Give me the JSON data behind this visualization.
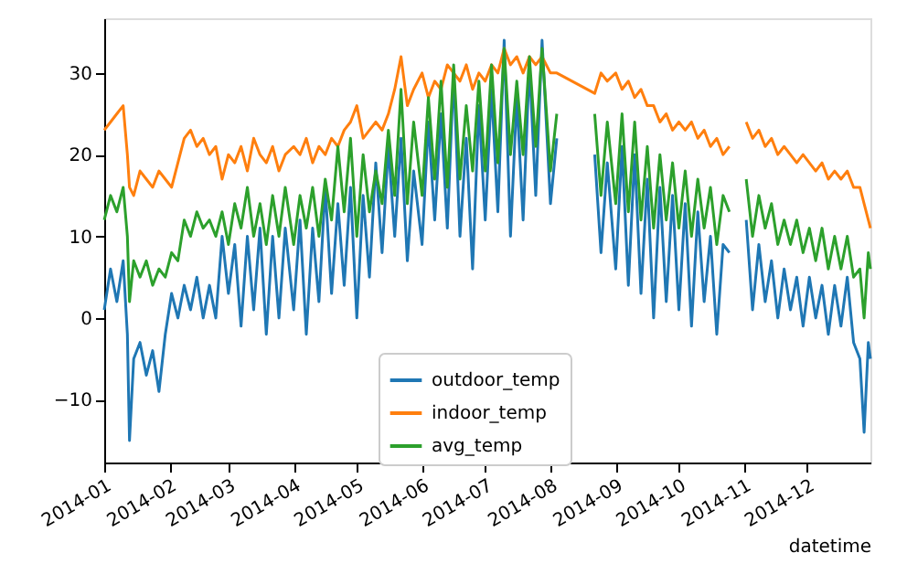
{
  "chart_data": {
    "type": "line",
    "xlabel": "datetime",
    "legend": "bottom",
    "grid": false,
    "xlim": [
      "2014-01-01",
      "2014-12-31"
    ],
    "xticks": [
      "2014-01",
      "2014-02",
      "2014-03",
      "2014-04",
      "2014-05",
      "2014-06",
      "2014-07",
      "2014-08",
      "2014-09",
      "2014-10",
      "2014-11",
      "2014-12"
    ],
    "ylim": [
      -17.7,
      36.7
    ],
    "yticks": [
      -10,
      0,
      10,
      20,
      30
    ],
    "x": [
      "2014-01-01",
      "2014-01-04",
      "2014-01-07",
      "2014-01-10",
      "2014-01-12",
      "2014-01-13",
      "2014-01-15",
      "2014-01-18",
      "2014-01-21",
      "2014-01-24",
      "2014-01-27",
      "2014-01-30",
      "2014-02-02",
      "2014-02-05",
      "2014-02-08",
      "2014-02-11",
      "2014-02-14",
      "2014-02-17",
      "2014-02-20",
      "2014-02-23",
      "2014-02-26",
      "2014-03-01",
      "2014-03-04",
      "2014-03-07",
      "2014-03-10",
      "2014-03-13",
      "2014-03-16",
      "2014-03-19",
      "2014-03-22",
      "2014-03-25",
      "2014-03-28",
      "2014-04-01",
      "2014-04-04",
      "2014-04-07",
      "2014-04-10",
      "2014-04-13",
      "2014-04-16",
      "2014-04-19",
      "2014-04-22",
      "2014-04-25",
      "2014-04-28",
      "2014-05-01",
      "2014-05-04",
      "2014-05-07",
      "2014-05-10",
      "2014-05-13",
      "2014-05-16",
      "2014-05-19",
      "2014-05-22",
      "2014-05-25",
      "2014-05-28",
      "2014-06-01",
      "2014-06-04",
      "2014-06-07",
      "2014-06-10",
      "2014-06-13",
      "2014-06-16",
      "2014-06-19",
      "2014-06-22",
      "2014-06-25",
      "2014-06-28",
      "2014-07-01",
      "2014-07-04",
      "2014-07-07",
      "2014-07-10",
      "2014-07-13",
      "2014-07-16",
      "2014-07-19",
      "2014-07-22",
      "2014-07-25",
      "2014-07-28",
      "2014-08-01",
      "2014-08-04",
      "2014-08-13",
      "2014-08-22",
      "2014-08-25",
      "2014-08-28",
      "2014-09-01",
      "2014-09-04",
      "2014-09-07",
      "2014-09-10",
      "2014-09-13",
      "2014-09-16",
      "2014-09-19",
      "2014-09-22",
      "2014-09-25",
      "2014-09-28",
      "2014-10-01",
      "2014-10-04",
      "2014-10-07",
      "2014-10-10",
      "2014-10-13",
      "2014-10-16",
      "2014-10-19",
      "2014-10-22",
      "2014-10-25",
      "2014-10-29",
      "2014-11-02",
      "2014-11-05",
      "2014-11-08",
      "2014-11-11",
      "2014-11-14",
      "2014-11-17",
      "2014-11-20",
      "2014-11-23",
      "2014-11-26",
      "2014-11-29",
      "2014-12-02",
      "2014-12-05",
      "2014-12-08",
      "2014-12-11",
      "2014-12-14",
      "2014-12-17",
      "2014-12-20",
      "2014-12-23",
      "2014-12-26",
      "2014-12-28",
      "2014-12-30",
      "2014-12-31"
    ],
    "series": [
      {
        "name": "outdoor_temp",
        "color": "#1f77b4",
        "values": [
          1,
          6,
          2,
          7,
          -2,
          -15,
          -5,
          -3,
          -7,
          -4,
          -9,
          -2,
          3,
          0,
          4,
          1,
          5,
          0,
          4,
          0,
          10,
          3,
          9,
          -1,
          10,
          1,
          11,
          -2,
          10,
          0,
          11,
          1,
          12,
          -2,
          11,
          2,
          16,
          3,
          14,
          4,
          16,
          0,
          15,
          5,
          19,
          8,
          21,
          10,
          22,
          7,
          18,
          9,
          24,
          12,
          25,
          11,
          30,
          10,
          22,
          6,
          26,
          12,
          28,
          13,
          34,
          10,
          27,
          12,
          31,
          15,
          34,
          14,
          22,
          null,
          20,
          8,
          19,
          6,
          21,
          4,
          20,
          3,
          17,
          0,
          16,
          2,
          15,
          1,
          14,
          -1,
          13,
          2,
          10,
          -2,
          9,
          8,
          null,
          12,
          1,
          9,
          2,
          7,
          0,
          6,
          1,
          5,
          -1,
          5,
          0,
          4,
          -2,
          4,
          -1,
          5,
          -3,
          -5,
          -14,
          -3,
          -5
        ]
      },
      {
        "name": "indoor_temp",
        "color": "#ff7f0e",
        "x": [
          "2014-01-01",
          "2014-01-04",
          "2014-01-07",
          "2014-01-10",
          "2014-01-12",
          "2014-01-13",
          "2014-01-15",
          "2014-01-18",
          "2014-01-21",
          "2014-01-24",
          "2014-01-27",
          "2014-01-30",
          "2014-02-02",
          "2014-02-05",
          "2014-02-08",
          "2014-02-11",
          "2014-02-14",
          "2014-02-17",
          "2014-02-20",
          "2014-02-23",
          "2014-02-26",
          "2014-03-01",
          "2014-03-04",
          "2014-03-07",
          "2014-03-10",
          "2014-03-13",
          "2014-03-16",
          "2014-03-19",
          "2014-03-22",
          "2014-03-25",
          "2014-03-28",
          "2014-04-01",
          "2014-04-04",
          "2014-04-07",
          "2014-04-10",
          "2014-04-13",
          "2014-04-16",
          "2014-04-19",
          "2014-04-22",
          "2014-04-25",
          "2014-04-28",
          "2014-05-01",
          "2014-05-04",
          "2014-05-07",
          "2014-05-10",
          "2014-05-13",
          "2014-05-16",
          "2014-05-19",
          "2014-05-22",
          "2014-05-25",
          "2014-05-28",
          "2014-06-01",
          "2014-06-04",
          "2014-06-07",
          "2014-06-10",
          "2014-06-13",
          "2014-06-16",
          "2014-06-19",
          "2014-06-22",
          "2014-06-25",
          "2014-06-28",
          "2014-07-01",
          "2014-07-04",
          "2014-07-07",
          "2014-07-10",
          "2014-07-13",
          "2014-07-16",
          "2014-07-19",
          "2014-07-22",
          "2014-07-25",
          "2014-07-28",
          "2014-08-01",
          "2014-08-04",
          "2014-08-22",
          "2014-08-25",
          "2014-08-28",
          "2014-09-01",
          "2014-09-04",
          "2014-09-07",
          "2014-09-10",
          "2014-09-13",
          "2014-09-16",
          "2014-09-19",
          "2014-09-22",
          "2014-09-25",
          "2014-09-28",
          "2014-10-01",
          "2014-10-04",
          "2014-10-07",
          "2014-10-10",
          "2014-10-13",
          "2014-10-16",
          "2014-10-19",
          "2014-10-22",
          "2014-10-25",
          "2014-10-29",
          "2014-11-02",
          "2014-11-05",
          "2014-11-08",
          "2014-11-11",
          "2014-11-14",
          "2014-11-17",
          "2014-11-20",
          "2014-11-23",
          "2014-11-26",
          "2014-11-29",
          "2014-12-02",
          "2014-12-05",
          "2014-12-08",
          "2014-12-11",
          "2014-12-14",
          "2014-12-17",
          "2014-12-20",
          "2014-12-23",
          "2014-12-26",
          "2014-12-28",
          "2014-12-30",
          "2014-12-31"
        ],
        "values": [
          23,
          24,
          25,
          26,
          20,
          16,
          15,
          18,
          17,
          16,
          18,
          17,
          16,
          19,
          22,
          23,
          21,
          22,
          20,
          21,
          17,
          20,
          19,
          21,
          18,
          22,
          20,
          19,
          21,
          18,
          20,
          21,
          20,
          22,
          19,
          21,
          20,
          22,
          21,
          23,
          24,
          26,
          22,
          23,
          24,
          23,
          25,
          28,
          32,
          26,
          28,
          30,
          27,
          29,
          28,
          31,
          30,
          29,
          31,
          28,
          30,
          29,
          31,
          30,
          33,
          31,
          32,
          30,
          32,
          31,
          32,
          30,
          30,
          27.5,
          30,
          29,
          30,
          28,
          29,
          27,
          28,
          26,
          26,
          24,
          25,
          23,
          24,
          23,
          24,
          22,
          23,
          21,
          22,
          20,
          21,
          null,
          24,
          22,
          23,
          21,
          22,
          20,
          21,
          20,
          19,
          20,
          19,
          18,
          19,
          17,
          18,
          17,
          18,
          16,
          16,
          14,
          12,
          11
        ]
      },
      {
        "name": "avg_temp",
        "color": "#2ca02c",
        "values": [
          12,
          15,
          13,
          16,
          10,
          2,
          7,
          5,
          7,
          4,
          6,
          5,
          8,
          7,
          12,
          10,
          13,
          11,
          12,
          10,
          13,
          9,
          14,
          11,
          16,
          10,
          14,
          9,
          15,
          10,
          16,
          9,
          15,
          11,
          16,
          10,
          17,
          12,
          21,
          13,
          22,
          10,
          20,
          13,
          18,
          14,
          23,
          15,
          28,
          14,
          24,
          15,
          27,
          17,
          29,
          16,
          31,
          17,
          26,
          18,
          29,
          18,
          31,
          19,
          33,
          20,
          29,
          20,
          32,
          21,
          33,
          18,
          25,
          null,
          25,
          15,
          24,
          14,
          25,
          13,
          24,
          12,
          21,
          11,
          20,
          12,
          19,
          11,
          18,
          10,
          17,
          11,
          16,
          9,
          15,
          13,
          null,
          17,
          10,
          15,
          11,
          14,
          9,
          12,
          9,
          12,
          8,
          11,
          7,
          11,
          6,
          10,
          6,
          10,
          5,
          6,
          0,
          8,
          6
        ]
      }
    ]
  }
}
